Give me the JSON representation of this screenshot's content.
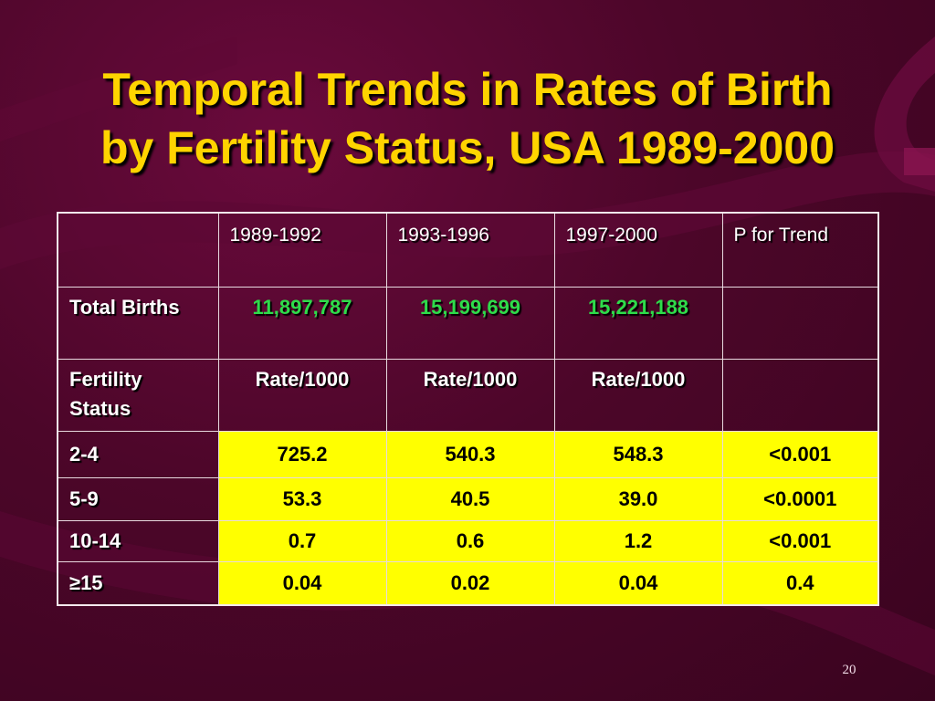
{
  "slide": {
    "title_line1": "Temporal Trends in Rates of Birth",
    "title_line2": "by Fertility Status, USA 1989-2000",
    "page_number": "20"
  },
  "table": {
    "header": [
      "",
      "1989-1992",
      "1993-1996",
      "1997-2000",
      "P for Trend"
    ],
    "total_births": {
      "label": "Total Births",
      "values": [
        "11,897,787",
        "15,199,699",
        "15,221,188",
        ""
      ]
    },
    "fertility_status": {
      "label": "Fertility Status",
      "values": [
        "Rate/1000",
        "Rate/1000",
        "Rate/1000",
        ""
      ]
    },
    "rows": [
      {
        "label": "2-4",
        "values": [
          "725.2",
          "540.3",
          "548.3",
          "<0.001"
        ]
      },
      {
        "label": "5-9",
        "values": [
          "53.3",
          "40.5",
          "39.0",
          "<0.0001"
        ]
      },
      {
        "label": "10-14",
        "values": [
          "0.7",
          "0.6",
          "1.2",
          "<0.001"
        ]
      },
      {
        "label": "≥15",
        "values": [
          "0.04",
          "0.02",
          "0.04",
          "0.4"
        ]
      }
    ]
  },
  "colors": {
    "background": "#4a0628",
    "title": "#ffd400",
    "highlight": "#ffff00",
    "total_births_values": "#2edc4a"
  }
}
